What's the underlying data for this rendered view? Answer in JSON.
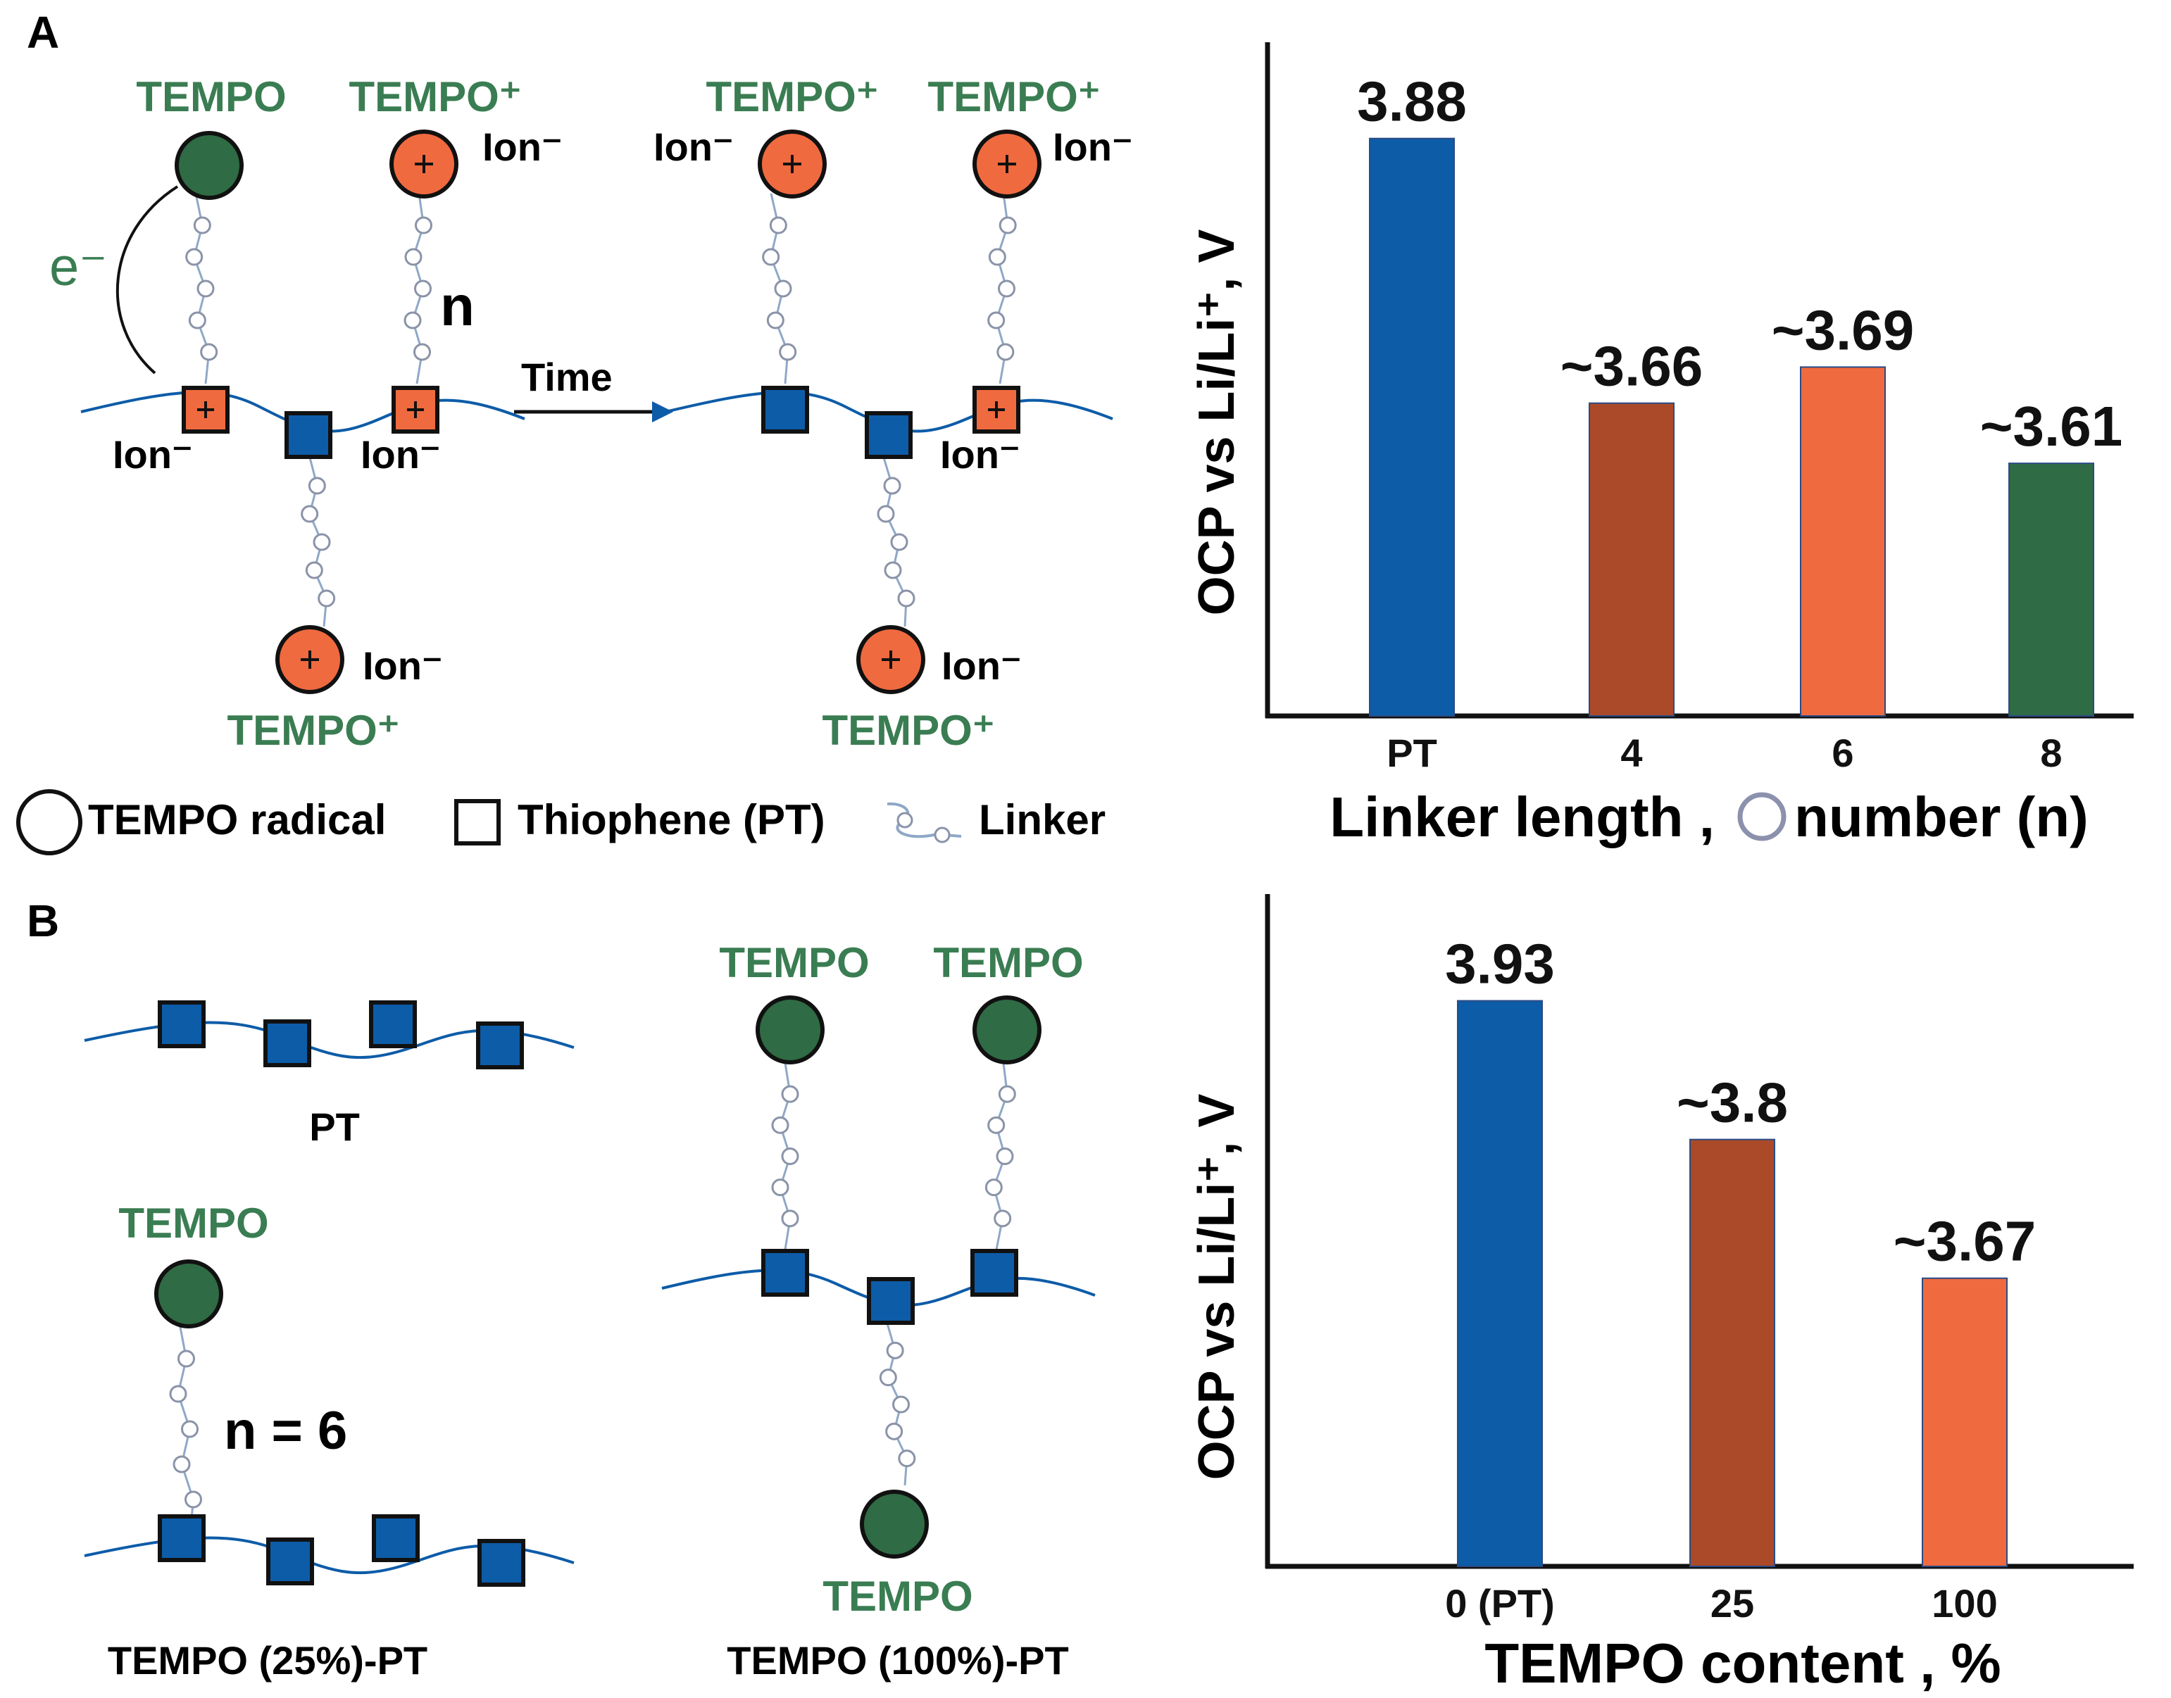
{
  "panel_a": {
    "letter": "A",
    "electron": "e⁻",
    "n_label": "n",
    "time_label": "Time",
    "ion": "Ion⁻",
    "tempo": "TEMPO",
    "tempo_plus": "TEMPO⁺",
    "legend": {
      "radical": "TEMPO radical",
      "thiophene": "Thiophene (PT)",
      "linker": "Linker"
    },
    "chart": {
      "ylabel": "OCP vs Li/Li⁺, V",
      "xlabel_left": "Linker length ,",
      "xlabel_right": "number (n)"
    }
  },
  "panel_b": {
    "letter": "B",
    "tempo": "TEMPO",
    "pt_label": "PT",
    "n_label": "n = 6",
    "label_25": "TEMPO (25%)-PT",
    "label_100": "TEMPO (100%)-PT",
    "chart": {
      "ylabel": "OCP vs Li/Li⁺, V",
      "xlabel": "TEMPO content , %"
    }
  },
  "colors": {
    "blue": "#0d5ca8",
    "brown": "#ab4a28",
    "orange": "#f06a3f",
    "green": "#2f6b44",
    "text_green": "#3a7d52",
    "linker": "#8fa8c8"
  },
  "chart_data": [
    {
      "type": "bar",
      "categories": [
        "PT",
        "4",
        "6",
        "8"
      ],
      "values": [
        3.88,
        3.66,
        3.69,
        3.61
      ],
      "data_labels": [
        "3.88",
        "~3.66",
        "~3.69",
        "~3.61"
      ],
      "colors": [
        "#0d5ca8",
        "#ab4a28",
        "#f06a3f",
        "#2f6b44"
      ],
      "ylabel": "OCP vs Li/Li⁺, V",
      "xlabel": "Linker length , number (n)",
      "ylim": [
        3.4,
        3.96
      ],
      "grid": false
    },
    {
      "type": "bar",
      "categories": [
        "0 (PT)",
        "25",
        "100"
      ],
      "values": [
        3.93,
        3.8,
        3.67
      ],
      "data_labels": [
        "3.93",
        "~3.8",
        "~3.67"
      ],
      "colors": [
        "#0d5ca8",
        "#ab4a28",
        "#f06a3f"
      ],
      "ylabel": "OCP vs Li/Li⁺, V",
      "xlabel": "TEMPO content , %",
      "ylim": [
        3.4,
        4.03
      ],
      "grid": false
    }
  ]
}
